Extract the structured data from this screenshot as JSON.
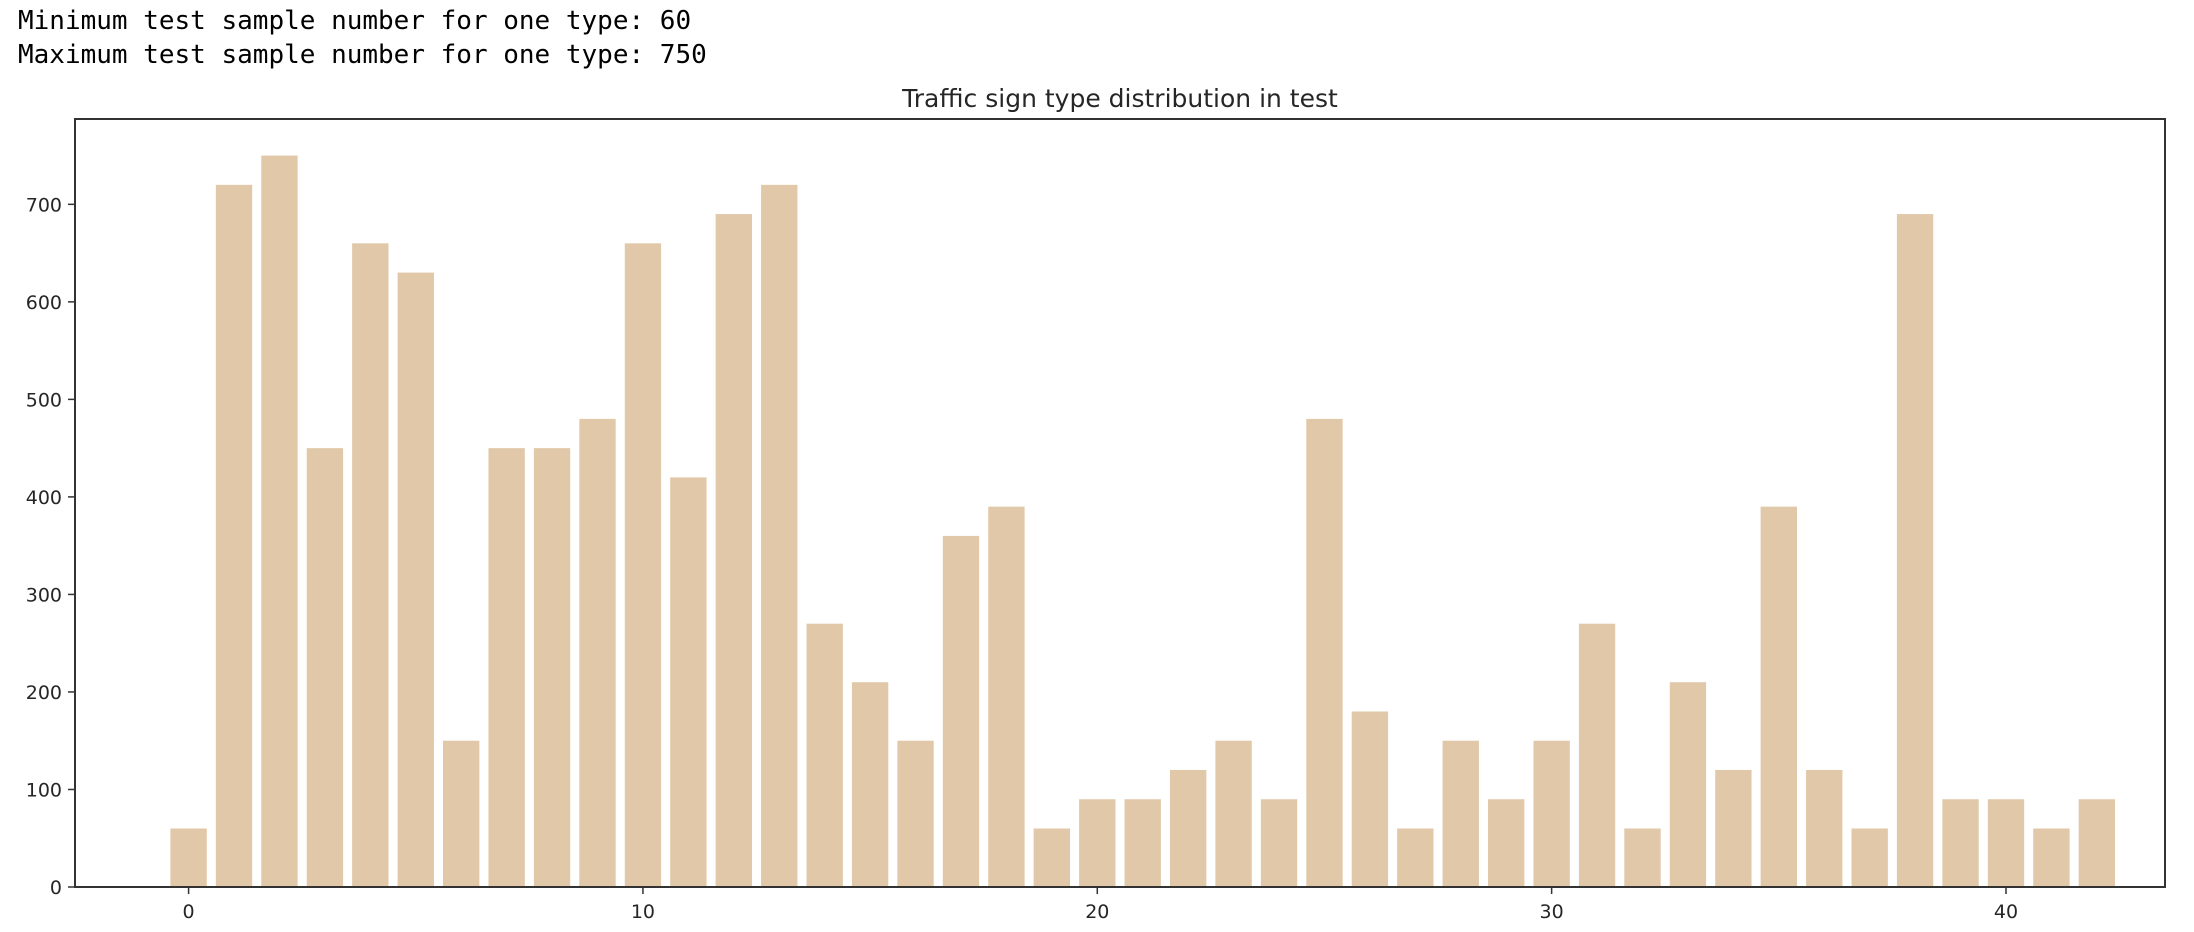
{
  "output": {
    "line1": "Minimum test sample number for one type: 60",
    "line2": "Maximum test sample number for one type: 750"
  },
  "chart_data": {
    "type": "bar",
    "title": "Traffic sign type distribution in test",
    "xlabel": "",
    "ylabel": "",
    "x": [
      0,
      1,
      2,
      3,
      4,
      5,
      6,
      7,
      8,
      9,
      10,
      11,
      12,
      13,
      14,
      15,
      16,
      17,
      18,
      19,
      20,
      21,
      22,
      23,
      24,
      25,
      26,
      27,
      28,
      29,
      30,
      31,
      32,
      33,
      34,
      35,
      36,
      37,
      38,
      39,
      40,
      41,
      42
    ],
    "values": [
      60,
      720,
      750,
      450,
      660,
      630,
      150,
      450,
      450,
      480,
      660,
      420,
      690,
      720,
      270,
      210,
      150,
      360,
      390,
      60,
      90,
      90,
      120,
      150,
      90,
      480,
      180,
      60,
      150,
      90,
      150,
      270,
      60,
      210,
      120,
      390,
      120,
      60,
      690,
      90,
      90,
      60,
      90
    ],
    "xlim": [
      -2.5,
      43.5
    ],
    "ylim": [
      0,
      787.5
    ],
    "xticks": [
      0,
      10,
      20,
      30,
      40
    ],
    "yticks": [
      0,
      100,
      200,
      300,
      400,
      500,
      600,
      700
    ],
    "bar_color": "#e0c8a8",
    "grid": false,
    "legend": false
  }
}
